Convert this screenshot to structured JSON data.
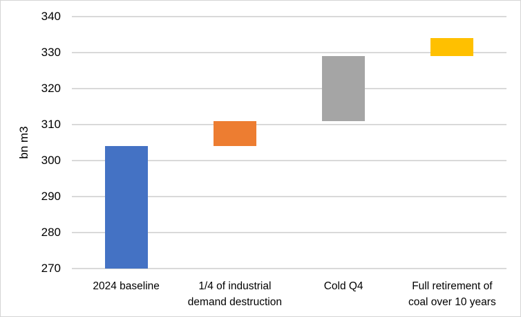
{
  "chart_data": {
    "type": "bar",
    "subtype": "waterfall-floating-bars",
    "title": "",
    "xlabel": "",
    "ylabel": "bn m3",
    "ylim": [
      270,
      340
    ],
    "ytick_step": 10,
    "yticks": [
      340,
      330,
      320,
      310,
      300,
      290,
      280,
      270
    ],
    "grid": true,
    "legend": false,
    "categories": [
      "2024 baseline",
      "1/4 of industrial\ndemand destruction",
      "Cold Q4",
      "Full retirement of\ncoal over 10 years"
    ],
    "segments": [
      {
        "label": "2024 baseline",
        "from": 270,
        "to": 304,
        "value": 304,
        "color": "#4472c4"
      },
      {
        "label": "1/4 of industrial demand destruction",
        "from": 304,
        "to": 311,
        "value": 7,
        "color": "#ed7d31"
      },
      {
        "label": "Cold Q4",
        "from": 311,
        "to": 329,
        "value": 18,
        "color": "#a5a5a5"
      },
      {
        "label": "Full retirement of coal over 10 years",
        "from": 329,
        "to": 334,
        "value": 5,
        "color": "#ffc000"
      }
    ],
    "colors": {
      "gridline": "#d9d9d9",
      "frame_border": "#d5d5d5",
      "text": "#000000",
      "bar_blue": "#4472c4",
      "bar_orange": "#ed7d31",
      "bar_gray": "#a5a5a5",
      "bar_yellow": "#ffc000"
    }
  }
}
